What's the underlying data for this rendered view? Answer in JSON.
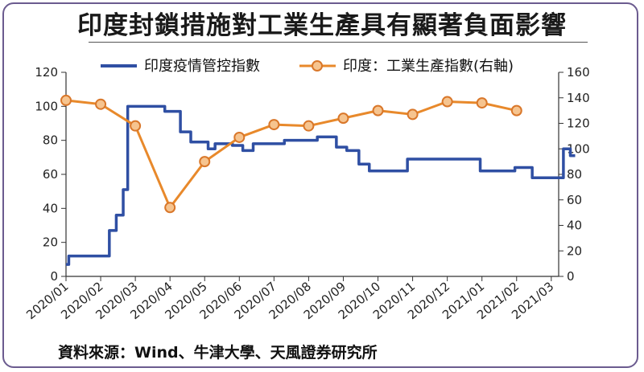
{
  "title": "印度封鎖措施對工業生產具有顯著負面影響",
  "source": "資料來源：Wind、牛津大學、天風證券研究所",
  "chart_data": {
    "type": "line",
    "legend_position": "top",
    "grid": false,
    "x_categories": [
      "2020/01",
      "2020/02",
      "2020/03",
      "2020/04",
      "2020/05",
      "2020/06",
      "2020/07",
      "2020/08",
      "2020/09",
      "2020/10",
      "2020/11",
      "2020/12",
      "2021/01",
      "2021/02",
      "2021/03"
    ],
    "y_left": {
      "ticks": [
        0,
        20,
        40,
        60,
        80,
        100,
        120
      ],
      "range": [
        0,
        120
      ]
    },
    "y_right": {
      "ticks": [
        0,
        20,
        40,
        60,
        80,
        100,
        120,
        140,
        160
      ],
      "range": [
        0,
        160
      ]
    },
    "series": [
      {
        "name": "印度疫情管控指數",
        "axis": "left",
        "color": "#2f4fa3",
        "step": true,
        "points": [
          [
            "2020/01",
            7
          ],
          [
            "2020/01.08",
            12
          ],
          [
            "2020/02.25",
            27
          ],
          [
            "2020/02.45",
            36
          ],
          [
            "2020/02.65",
            51
          ],
          [
            "2020/02.78",
            100
          ],
          [
            "2020/03.85",
            97
          ],
          [
            "2020/04.3",
            85
          ],
          [
            "2020/04.6",
            79
          ],
          [
            "2020/05.1",
            75
          ],
          [
            "2020/05.3",
            78
          ],
          [
            "2020/05.8",
            77
          ],
          [
            "2020/06.1",
            74
          ],
          [
            "2020/06.4",
            78
          ],
          [
            "2020/07.3",
            80
          ],
          [
            "2020/08.25",
            82
          ],
          [
            "2020/08.8",
            76
          ],
          [
            "2020/09.1",
            74
          ],
          [
            "2020/09.45",
            66
          ],
          [
            "2020/09.75",
            62
          ],
          [
            "2020/10.85",
            69
          ],
          [
            "2020/12.95",
            62
          ],
          [
            "2021/01.95",
            64
          ],
          [
            "2021/02.45",
            58
          ],
          [
            "2021/03.35",
            75
          ],
          [
            "2021/03.55",
            71
          ]
        ]
      },
      {
        "name": "印度：工業生產指數(右軸)",
        "axis": "right",
        "color": "#e8892b",
        "marker": "circle",
        "points": [
          [
            "2020/01",
            138
          ],
          [
            "2020/02",
            135
          ],
          [
            "2020/03",
            118
          ],
          [
            "2020/04",
            54
          ],
          [
            "2020/05",
            90
          ],
          [
            "2020/06",
            109
          ],
          [
            "2020/07",
            119
          ],
          [
            "2020/08",
            118
          ],
          [
            "2020/09",
            124
          ],
          [
            "2020/10",
            130
          ],
          [
            "2020/11",
            127
          ],
          [
            "2020/12",
            137
          ],
          [
            "2021/01",
            136
          ],
          [
            "2021/02",
            130
          ]
        ]
      }
    ]
  }
}
